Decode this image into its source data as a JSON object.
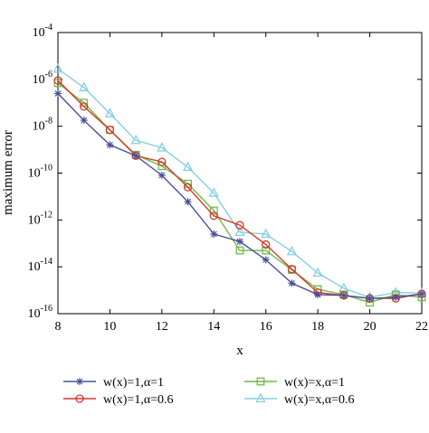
{
  "colors": {
    "background": "#ffffff",
    "axis": "#000000",
    "series_1": "#4a4f9a",
    "series_2": "#d23a2a",
    "series_3": "#6fba4c",
    "series_4": "#86cfe2"
  },
  "chart_data": {
    "type": "line",
    "title": "",
    "xlabel": "x",
    "ylabel": "maximum error",
    "xlim": [
      8,
      22
    ],
    "ylim_log10": [
      -16,
      -4
    ],
    "y_scale": "log",
    "grid": false,
    "legend_position": "bottom",
    "x_ticks": [
      8,
      10,
      12,
      14,
      16,
      18,
      20,
      22
    ],
    "y_tick_exponents": [
      -16,
      -14,
      -12,
      -10,
      -8,
      -6,
      -4
    ],
    "y_tick_base": "10",
    "x": [
      8,
      9,
      10,
      11,
      12,
      13,
      14,
      15,
      16,
      17,
      18,
      19,
      20,
      21,
      22
    ],
    "series": [
      {
        "name": "w(x)=1,α=1",
        "marker": "star",
        "color": "#4a4f9a",
        "values": [
          2.5e-07,
          1.8e-08,
          1.6e-09,
          5.5e-10,
          8e-11,
          6e-12,
          2.5e-13,
          1.2e-13,
          2e-14,
          2e-15,
          6.5e-16,
          6e-16,
          4.5e-16,
          5e-16,
          7e-16
        ]
      },
      {
        "name": "w(x)=1,α=0.6",
        "marker": "circle",
        "color": "#d23a2a",
        "values": [
          9e-07,
          7e-08,
          7e-09,
          5.5e-10,
          3e-10,
          2.5e-11,
          1.5e-12,
          6e-13,
          9e-14,
          8e-15,
          8e-16,
          6e-16,
          4.5e-16,
          4.5e-16,
          7e-16
        ]
      },
      {
        "name": "w(x)=x,α=1",
        "marker": "square",
        "color": "#6fba4c",
        "values": [
          7e-07,
          1e-07,
          7e-09,
          6e-10,
          2e-10,
          3.5e-11,
          2.5e-12,
          5e-14,
          5e-14,
          7.5e-15,
          1.1e-15,
          6.5e-16,
          3e-16,
          6.5e-16,
          5e-16
        ]
      },
      {
        "name": "w(x)=x,α=0.6",
        "marker": "triangle",
        "color": "#86cfe2",
        "values": [
          2.8e-06,
          4.5e-07,
          3.5e-08,
          2.5e-09,
          1.2e-09,
          1.8e-10,
          1.4e-11,
          3e-13,
          2.5e-13,
          4.5e-14,
          5.5e-15,
          1.2e-15,
          5e-16,
          8e-16,
          7.5e-16
        ]
      }
    ]
  }
}
